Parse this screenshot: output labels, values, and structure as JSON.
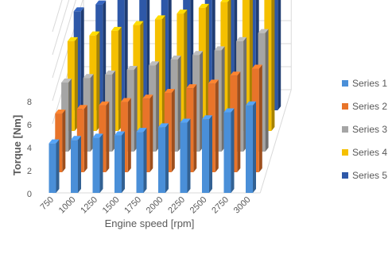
{
  "chart_data": {
    "type": "bar",
    "subtype": "3d-clustered-column",
    "title": "",
    "xlabel": "Engine speed [rpm]",
    "ylabel": "Torque [Nm]",
    "ylim": [
      0,
      14
    ],
    "y_ticks": [
      "0",
      "2",
      "4",
      "6",
      "8"
    ],
    "categories": [
      "750",
      "1000",
      "1250",
      "1500",
      "1750",
      "2000",
      "2250",
      "2500",
      "2750",
      "3000"
    ],
    "series": [
      {
        "name": "Series 1",
        "color": "#4a8fd8",
        "values": [
          4.3,
          4.6,
          4.8,
          5.0,
          5.3,
          5.7,
          6.1,
          6.4,
          7.0,
          7.6
        ]
      },
      {
        "name": "Series 2",
        "color": "#e8742a",
        "values": [
          5.1,
          5.5,
          5.8,
          6.1,
          6.4,
          6.9,
          7.3,
          7.7,
          8.4,
          9.0
        ]
      },
      {
        "name": "Series 3",
        "color": "#a5a5a5",
        "values": [
          6.0,
          6.4,
          6.7,
          7.1,
          7.5,
          8.0,
          8.4,
          8.8,
          9.6,
          10.3
        ]
      },
      {
        "name": "Series 4",
        "color": "#f5c000",
        "values": [
          7.8,
          8.3,
          8.7,
          9.2,
          9.7,
          10.2,
          10.7,
          11.2,
          11.9,
          12.5
        ]
      },
      {
        "name": "Series 5",
        "color": "#2e58a8",
        "values": [
          8.6,
          9.2,
          9.8,
          10.3,
          10.9,
          11.4,
          11.9,
          12.4,
          13.0,
          13.6
        ]
      }
    ],
    "grid": true,
    "legend_position": "right"
  }
}
